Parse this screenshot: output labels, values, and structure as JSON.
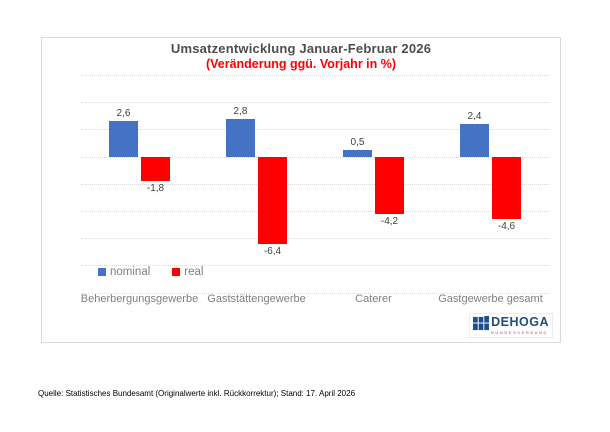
{
  "chart_data": {
    "type": "bar",
    "title": "Umsatzentwicklung Januar-Februar 2026",
    "subtitle": "(Veränderung ggü. Vorjahr in %)",
    "categories": [
      "Beherbergungsgewerbe",
      "Gaststättengewerbe",
      "Caterer",
      "Gastgewerbe gesamt"
    ],
    "series": [
      {
        "name": "nominal",
        "color": "#4472c4",
        "values": [
          2.6,
          2.8,
          0.5,
          2.4
        ],
        "labels": [
          "2,6",
          "2,8",
          "0,5",
          "2,4"
        ]
      },
      {
        "name": "real",
        "color": "#ff0000",
        "values": [
          -1.8,
          -6.4,
          -4.2,
          -4.6
        ],
        "labels": [
          "-1,8",
          "-6,4",
          "-4,2",
          "-4,6"
        ]
      }
    ],
    "ylim": [
      -10,
      6
    ],
    "grid_step": 2,
    "grid": true,
    "value_axis_labels_visible": false,
    "legend_position": "bottom-left-inside",
    "decimal_separator": ","
  },
  "colors": {
    "title": "#4d4d4d",
    "subtitle": "#ff0000",
    "gridline": "#d9d9d9",
    "value_label": "#404040",
    "category_label": "#808080",
    "legend_text": "#7f7f7f",
    "logo_blue": "#1f4e79"
  },
  "logo": {
    "name": "DEHOGA",
    "subtext": "BUNDESVERBAND"
  },
  "footer": {
    "text": "Quelle: Statistisches Bundesamt (Originalwerte inkl. Rückkorrektur); Stand: 17. April 2026"
  }
}
